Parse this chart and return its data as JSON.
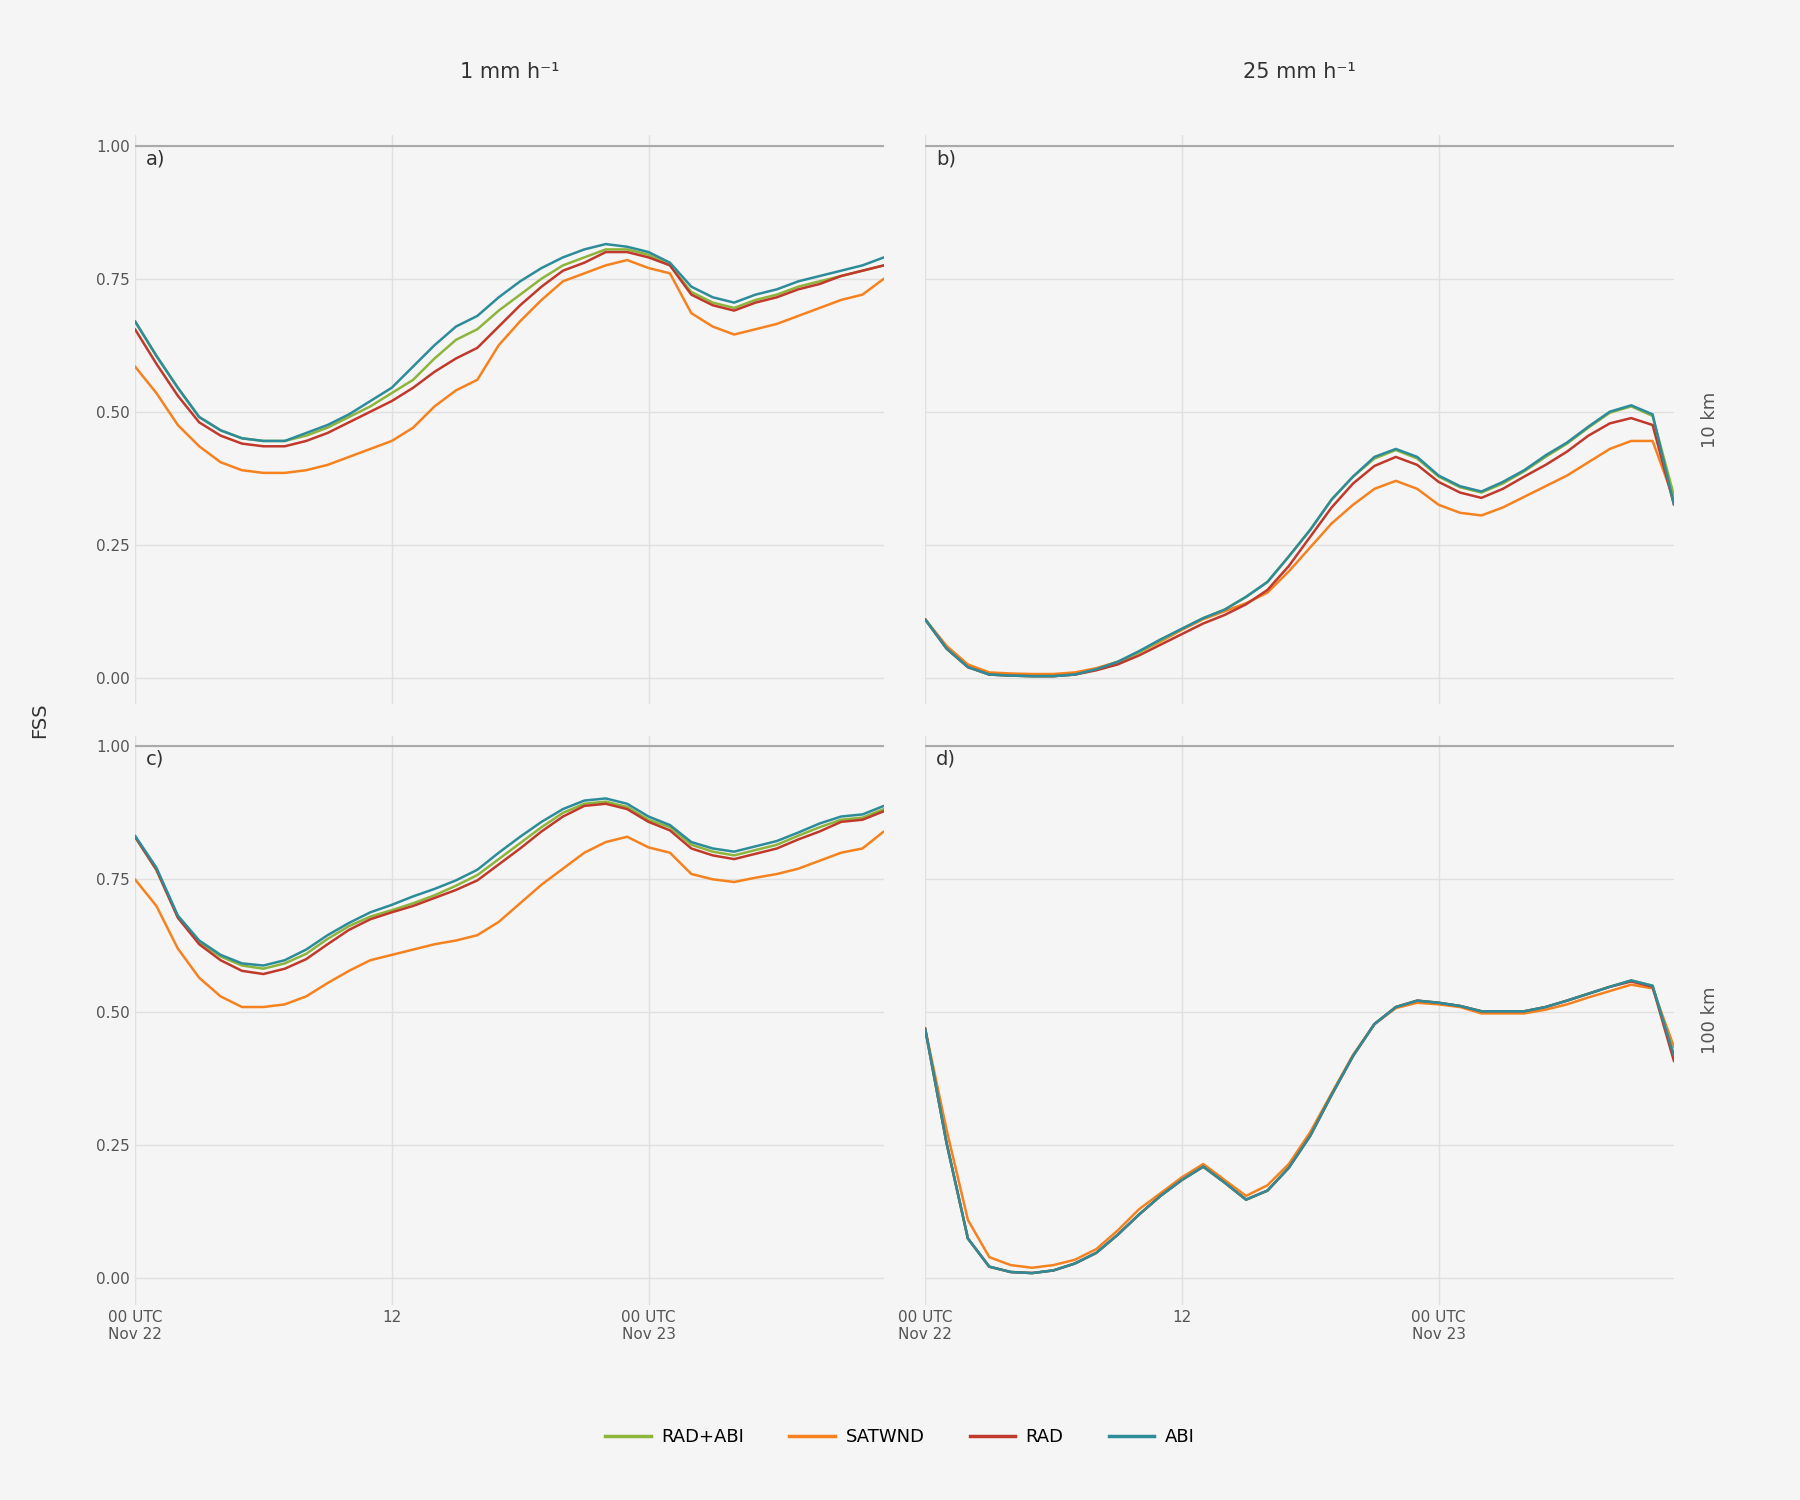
{
  "colors": {
    "RAD+ABI": "#8db53c",
    "SATWND": "#f5821f",
    "RAD": "#c0392b",
    "ABI": "#2e8b9a"
  },
  "linewidth": 1.8,
  "background_color": "#f5f5f5",
  "axes_background": "#f5f5f5",
  "grid_color": "#e0e0e0",
  "col_titles": [
    "1 mm h⁻¹",
    "25 mm h⁻¹"
  ],
  "row_labels": [
    "10 km",
    "100 km"
  ],
  "panel_labels": [
    "a)",
    "b)",
    "c)",
    "d)"
  ],
  "ylabel": "FSS",
  "legend_labels": [
    "RAD+ABI",
    "SATWND",
    "RAD",
    "ABI"
  ],
  "t_hours": [
    0,
    1,
    2,
    3,
    4,
    5,
    6,
    7,
    8,
    9,
    10,
    11,
    12,
    13,
    14,
    15,
    16,
    17,
    18,
    19,
    20,
    21,
    22,
    23,
    24,
    25,
    26,
    27,
    28,
    29,
    30,
    31,
    32,
    33,
    34,
    35
  ],
  "panel_a": {
    "SATWND": [
      0.585,
      0.535,
      0.475,
      0.435,
      0.405,
      0.39,
      0.385,
      0.385,
      0.39,
      0.4,
      0.415,
      0.43,
      0.445,
      0.47,
      0.51,
      0.54,
      0.56,
      0.625,
      0.67,
      0.71,
      0.745,
      0.76,
      0.775,
      0.785,
      0.77,
      0.76,
      0.685,
      0.66,
      0.645,
      0.655,
      0.665,
      0.68,
      0.695,
      0.71,
      0.72,
      0.75
    ],
    "RAD": [
      0.655,
      0.59,
      0.53,
      0.48,
      0.455,
      0.44,
      0.435,
      0.435,
      0.445,
      0.46,
      0.48,
      0.5,
      0.52,
      0.545,
      0.575,
      0.6,
      0.62,
      0.66,
      0.7,
      0.735,
      0.765,
      0.78,
      0.8,
      0.8,
      0.79,
      0.775,
      0.72,
      0.7,
      0.69,
      0.705,
      0.715,
      0.73,
      0.74,
      0.755,
      0.765,
      0.775
    ],
    "RAD+ABI": [
      0.67,
      0.605,
      0.545,
      0.49,
      0.465,
      0.45,
      0.445,
      0.445,
      0.455,
      0.47,
      0.49,
      0.51,
      0.535,
      0.56,
      0.6,
      0.635,
      0.655,
      0.69,
      0.72,
      0.75,
      0.775,
      0.79,
      0.805,
      0.805,
      0.795,
      0.775,
      0.725,
      0.705,
      0.695,
      0.71,
      0.72,
      0.735,
      0.745,
      0.755,
      0.765,
      0.775
    ],
    "ABI": [
      0.67,
      0.605,
      0.545,
      0.49,
      0.465,
      0.45,
      0.445,
      0.445,
      0.46,
      0.475,
      0.495,
      0.52,
      0.545,
      0.585,
      0.625,
      0.66,
      0.68,
      0.715,
      0.745,
      0.77,
      0.79,
      0.805,
      0.815,
      0.81,
      0.8,
      0.78,
      0.735,
      0.715,
      0.705,
      0.72,
      0.73,
      0.745,
      0.755,
      0.765,
      0.775,
      0.79
    ]
  },
  "panel_b": {
    "SATWND": [
      0.11,
      0.06,
      0.025,
      0.01,
      0.008,
      0.007,
      0.007,
      0.01,
      0.018,
      0.03,
      0.048,
      0.068,
      0.09,
      0.11,
      0.125,
      0.14,
      0.16,
      0.2,
      0.245,
      0.29,
      0.325,
      0.355,
      0.37,
      0.355,
      0.325,
      0.31,
      0.305,
      0.32,
      0.34,
      0.36,
      0.38,
      0.405,
      0.43,
      0.445,
      0.445,
      0.335
    ],
    "RAD": [
      0.11,
      0.055,
      0.02,
      0.006,
      0.004,
      0.003,
      0.003,
      0.006,
      0.014,
      0.025,
      0.042,
      0.062,
      0.082,
      0.102,
      0.118,
      0.138,
      0.165,
      0.21,
      0.265,
      0.32,
      0.365,
      0.398,
      0.415,
      0.4,
      0.368,
      0.348,
      0.338,
      0.355,
      0.378,
      0.4,
      0.425,
      0.455,
      0.478,
      0.488,
      0.475,
      0.325
    ],
    "RAD+ABI": [
      0.11,
      0.055,
      0.02,
      0.006,
      0.004,
      0.003,
      0.003,
      0.006,
      0.015,
      0.028,
      0.048,
      0.07,
      0.092,
      0.112,
      0.128,
      0.152,
      0.18,
      0.228,
      0.278,
      0.335,
      0.378,
      0.412,
      0.428,
      0.412,
      0.378,
      0.358,
      0.348,
      0.365,
      0.388,
      0.415,
      0.44,
      0.47,
      0.498,
      0.51,
      0.492,
      0.342
    ],
    "ABI": [
      0.11,
      0.055,
      0.02,
      0.006,
      0.004,
      0.003,
      0.003,
      0.006,
      0.016,
      0.03,
      0.05,
      0.072,
      0.092,
      0.112,
      0.128,
      0.152,
      0.18,
      0.228,
      0.278,
      0.335,
      0.378,
      0.415,
      0.43,
      0.415,
      0.38,
      0.36,
      0.35,
      0.368,
      0.39,
      0.418,
      0.442,
      0.472,
      0.5,
      0.512,
      0.495,
      0.325
    ]
  },
  "panel_c": {
    "SATWND": [
      0.75,
      0.7,
      0.62,
      0.565,
      0.53,
      0.51,
      0.51,
      0.515,
      0.53,
      0.555,
      0.578,
      0.598,
      0.608,
      0.618,
      0.628,
      0.635,
      0.645,
      0.67,
      0.705,
      0.74,
      0.77,
      0.8,
      0.82,
      0.83,
      0.81,
      0.8,
      0.76,
      0.75,
      0.745,
      0.753,
      0.76,
      0.77,
      0.785,
      0.8,
      0.808,
      0.84
    ],
    "RAD": [
      0.83,
      0.768,
      0.678,
      0.628,
      0.598,
      0.578,
      0.572,
      0.582,
      0.6,
      0.628,
      0.655,
      0.675,
      0.688,
      0.7,
      0.715,
      0.73,
      0.748,
      0.778,
      0.808,
      0.84,
      0.868,
      0.888,
      0.892,
      0.882,
      0.858,
      0.842,
      0.808,
      0.795,
      0.788,
      0.798,
      0.808,
      0.825,
      0.84,
      0.858,
      0.862,
      0.878
    ],
    "RAD+ABI": [
      0.83,
      0.768,
      0.68,
      0.632,
      0.605,
      0.588,
      0.582,
      0.592,
      0.61,
      0.638,
      0.662,
      0.68,
      0.692,
      0.705,
      0.72,
      0.738,
      0.758,
      0.788,
      0.818,
      0.848,
      0.875,
      0.892,
      0.896,
      0.886,
      0.862,
      0.848,
      0.815,
      0.802,
      0.795,
      0.805,
      0.815,
      0.832,
      0.848,
      0.862,
      0.866,
      0.882
    ],
    "ABI": [
      0.832,
      0.772,
      0.682,
      0.635,
      0.608,
      0.592,
      0.588,
      0.598,
      0.618,
      0.645,
      0.668,
      0.688,
      0.702,
      0.718,
      0.732,
      0.748,
      0.768,
      0.8,
      0.83,
      0.858,
      0.882,
      0.898,
      0.902,
      0.892,
      0.868,
      0.852,
      0.82,
      0.808,
      0.802,
      0.812,
      0.822,
      0.838,
      0.855,
      0.868,
      0.872,
      0.888
    ]
  },
  "panel_d": {
    "SATWND": [
      0.47,
      0.28,
      0.11,
      0.04,
      0.025,
      0.02,
      0.025,
      0.035,
      0.055,
      0.09,
      0.13,
      0.16,
      0.19,
      0.215,
      0.185,
      0.155,
      0.175,
      0.215,
      0.275,
      0.348,
      0.42,
      0.478,
      0.508,
      0.518,
      0.515,
      0.51,
      0.498,
      0.498,
      0.498,
      0.505,
      0.515,
      0.528,
      0.54,
      0.552,
      0.545,
      0.435
    ],
    "RAD": [
      0.47,
      0.255,
      0.075,
      0.022,
      0.012,
      0.01,
      0.015,
      0.028,
      0.048,
      0.082,
      0.12,
      0.155,
      0.185,
      0.21,
      0.18,
      0.148,
      0.165,
      0.208,
      0.268,
      0.345,
      0.418,
      0.478,
      0.51,
      0.522,
      0.518,
      0.512,
      0.502,
      0.502,
      0.502,
      0.51,
      0.522,
      0.535,
      0.548,
      0.558,
      0.548,
      0.408
    ],
    "RAD+ABI": [
      0.47,
      0.255,
      0.075,
      0.022,
      0.012,
      0.01,
      0.015,
      0.028,
      0.048,
      0.082,
      0.12,
      0.155,
      0.185,
      0.21,
      0.18,
      0.148,
      0.165,
      0.208,
      0.268,
      0.345,
      0.418,
      0.478,
      0.51,
      0.522,
      0.518,
      0.512,
      0.502,
      0.502,
      0.502,
      0.51,
      0.522,
      0.535,
      0.548,
      0.56,
      0.55,
      0.42
    ],
    "ABI": [
      0.47,
      0.255,
      0.075,
      0.022,
      0.012,
      0.01,
      0.015,
      0.028,
      0.048,
      0.082,
      0.12,
      0.155,
      0.185,
      0.21,
      0.18,
      0.148,
      0.165,
      0.208,
      0.268,
      0.345,
      0.418,
      0.478,
      0.51,
      0.522,
      0.518,
      0.512,
      0.502,
      0.502,
      0.502,
      0.51,
      0.522,
      0.535,
      0.548,
      0.56,
      0.55,
      0.418
    ]
  }
}
